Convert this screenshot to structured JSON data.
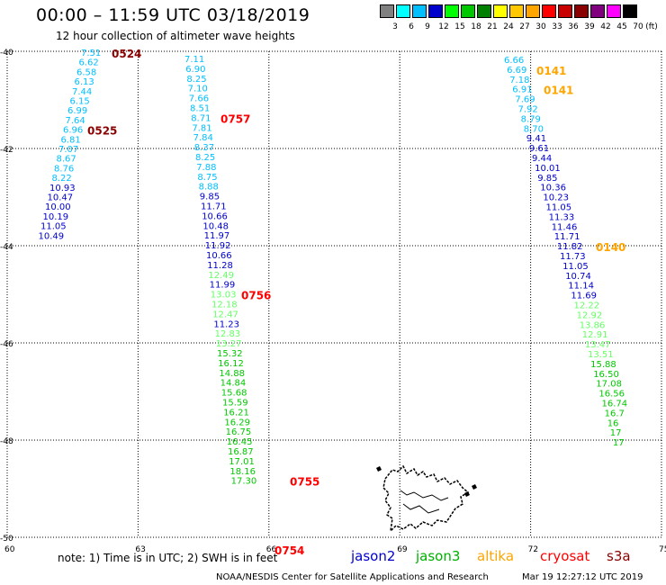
{
  "header": {
    "title": "00:00 – 11:59 UTC 03/18/2019",
    "subtitle": "12 hour collection of altimeter wave heights"
  },
  "color_scale": {
    "labels": [
      "3",
      "6",
      "9",
      "12",
      "15",
      "18",
      "21",
      "24",
      "27",
      "30",
      "33",
      "36",
      "39",
      "42",
      "45",
      "70",
      "(ft)"
    ],
    "colors": [
      "#808080",
      "#00ffff",
      "#00bfff",
      "#0000cd",
      "#00ff00",
      "#00c800",
      "#008000",
      "#ffff00",
      "#ffc800",
      "#ffa500",
      "#ff0000",
      "#c80000",
      "#8b0000",
      "#800080",
      "#ff00ff",
      "#000000"
    ]
  },
  "axes": {
    "lat_labels": [
      "-40",
      "-42",
      "-44",
      "-46",
      "-48",
      "-50"
    ],
    "lon_labels": [
      "60",
      "63",
      "66",
      "69",
      "72",
      "75"
    ]
  },
  "tracks": [
    {
      "name": "track-1",
      "time_labels": [
        {
          "text": "0524",
          "color": "#8b0000",
          "index": 0
        },
        {
          "text": "0525",
          "color": "#8b0000",
          "index": 8
        }
      ],
      "values": [
        "7.51",
        "6.62",
        "6.58",
        "6.13",
        "7.44",
        "6.15",
        "6.99",
        "7.64",
        "6.96",
        "6.81",
        "7.07",
        "8.67",
        "8.76",
        "8.22",
        "10.93",
        "10.47",
        "10.00",
        "10.19",
        "11.05",
        "10.49"
      ],
      "colors": [
        "#00bfff",
        "#00bfff",
        "#00bfff",
        "#00bfff",
        "#00bfff",
        "#00bfff",
        "#00bfff",
        "#00bfff",
        "#00bfff",
        "#00bfff",
        "#00bfff",
        "#00bfff",
        "#00bfff",
        "#00bfff",
        "#0000cd",
        "#0000cd",
        "#0000cd",
        "#0000cd",
        "#0000cd",
        "#0000cd"
      ]
    },
    {
      "name": "track-2",
      "time_labels": [
        {
          "text": "0757",
          "color": "#ff0000",
          "index": 6
        },
        {
          "text": "0756",
          "color": "#ff0000",
          "index": 24
        },
        {
          "text": "0755",
          "color": "#ff0000",
          "index": 43
        },
        {
          "text": "0754",
          "color": "#ff0000",
          "index": 50
        }
      ],
      "values": [
        "7.11",
        "6.90",
        "8.25",
        "7.10",
        "7.66",
        "8.51",
        "8.71",
        "7.81",
        "7.84",
        "8.37",
        "8.25",
        "7.88",
        "8.75",
        "8.88",
        "9.85",
        "11.71",
        "10.66",
        "10.48",
        "11.97",
        "11.92",
        "10.66",
        "11.28",
        "12.49",
        "11.99",
        "13.03",
        "12.18",
        "12.47",
        "11.23",
        "12.83",
        "13.27",
        "15.32",
        "16.12",
        "14.88",
        "14.84",
        "15.68",
        "15.59",
        "16.21",
        "16.29",
        "16.75",
        "16.45",
        "16.87",
        "17.01",
        "18.16",
        "17.30"
      ],
      "colors": [
        "#00bfff",
        "#00bfff",
        "#00bfff",
        "#00bfff",
        "#00bfff",
        "#00bfff",
        "#00bfff",
        "#00bfff",
        "#00bfff",
        "#00bfff",
        "#00bfff",
        "#00bfff",
        "#00bfff",
        "#00bfff",
        "#0000cd",
        "#0000cd",
        "#0000cd",
        "#0000cd",
        "#0000cd",
        "#0000cd",
        "#0000cd",
        "#0000cd",
        "#66ff66",
        "#0000cd",
        "#66ff66",
        "#66ff66",
        "#66ff66",
        "#0000cd",
        "#66ff66",
        "#66ff66",
        "#00c800",
        "#00c800",
        "#00c800",
        "#00c800",
        "#00c800",
        "#00c800",
        "#00c800",
        "#00c800",
        "#00c800",
        "#00c800",
        "#00c800",
        "#00c800",
        "#00c800",
        "#00c800"
      ]
    },
    {
      "name": "track-3",
      "time_labels": [
        {
          "text": "0141",
          "color": "#ffa500",
          "index": 1
        },
        {
          "text": "0141",
          "color": "#ffa500",
          "index": 3
        },
        {
          "text": "0140",
          "color": "#ffa500",
          "index": 19
        }
      ],
      "values": [
        "6.66",
        "6.69",
        "7.18",
        "6.91",
        "7.69",
        "7.92",
        "8.79",
        "8.70",
        "9.41",
        "9.61",
        "9.44",
        "10.01",
        "9.85",
        "10.36",
        "10.23",
        "11.05",
        "11.33",
        "11.46",
        "11.71",
        "11.82",
        "11.73",
        "11.05",
        "10.74",
        "11.14",
        "11.69",
        "12.22",
        "12.92",
        "13.86",
        "12.91",
        "13.47",
        "13.51",
        "15.88",
        "16.50",
        "17.08",
        "16.56",
        "16.74",
        "16.7",
        "16",
        "17",
        "17"
      ],
      "colors": [
        "#00bfff",
        "#00bfff",
        "#00bfff",
        "#00bfff",
        "#00bfff",
        "#00bfff",
        "#00bfff",
        "#00bfff",
        "#0000cd",
        "#0000cd",
        "#0000cd",
        "#0000cd",
        "#0000cd",
        "#0000cd",
        "#0000cd",
        "#0000cd",
        "#0000cd",
        "#0000cd",
        "#0000cd",
        "#0000cd",
        "#0000cd",
        "#0000cd",
        "#0000cd",
        "#0000cd",
        "#0000cd",
        "#66ff66",
        "#66ff66",
        "#66ff66",
        "#66ff66",
        "#66ff66",
        "#66ff66",
        "#00c800",
        "#00c800",
        "#00c800",
        "#00c800",
        "#00c800",
        "#00c800",
        "#00c800",
        "#00c800",
        "#00c800"
      ]
    }
  ],
  "note": "note:  1) Time is in UTC;  2) SWH is in feet",
  "legend": [
    {
      "label": "jason2",
      "color": "#0000cd"
    },
    {
      "label": "jason3",
      "color": "#00b000"
    },
    {
      "label": "altika",
      "color": "#ffa500"
    },
    {
      "label": "cryosat",
      "color": "#ff0000"
    },
    {
      "label": "s3a",
      "color": "#8b0000"
    }
  ],
  "footer": {
    "credit": "NOAA/NESDIS Center for Satellite Applications and Research",
    "timestamp": "Mar 19 12:27:12 UTC 2019"
  }
}
